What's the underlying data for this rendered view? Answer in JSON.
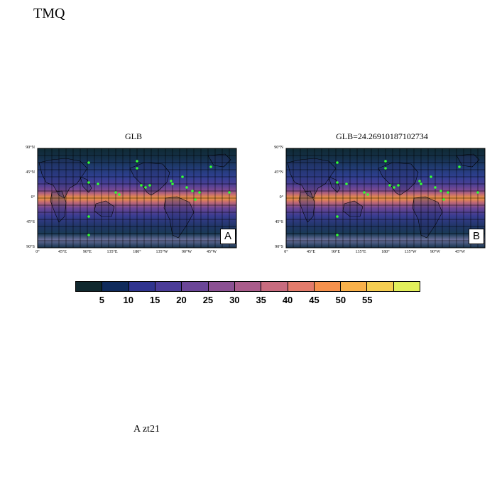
{
  "title": "TMQ",
  "footer": "A  zt21",
  "panels": [
    {
      "title": "GLB",
      "letter": "A"
    },
    {
      "title": "GLB=24.26910187102734",
      "letter": "B"
    }
  ],
  "axes": {
    "lat_labels": [
      "90°N",
      "45°N",
      "0°",
      "45°S",
      "90°S"
    ],
    "lon_labels": [
      "0°",
      "45°E",
      "90°E",
      "135°E",
      "180°",
      "135°W",
      "90°W",
      "45°W"
    ]
  },
  "colorbar": {
    "levels": [
      "5",
      "10",
      "15",
      "20",
      "25",
      "30",
      "35",
      "40",
      "45",
      "50",
      "55"
    ],
    "colors": [
      "#10282e",
      "#102b5c",
      "#30348f",
      "#4b3c98",
      "#6b4698",
      "#8b5193",
      "#a95c8b",
      "#c86c7f",
      "#e37c6c",
      "#f5914d",
      "#f9b14a",
      "#f5ce52",
      "#e2ef5b"
    ]
  },
  "chart_data": {
    "type": "heatmap",
    "variable": "TMQ",
    "global_mean": 24.26910187102734,
    "colorbar_levels": [
      5,
      10,
      15,
      20,
      25,
      30,
      35,
      40,
      45,
      50,
      55
    ]
  }
}
